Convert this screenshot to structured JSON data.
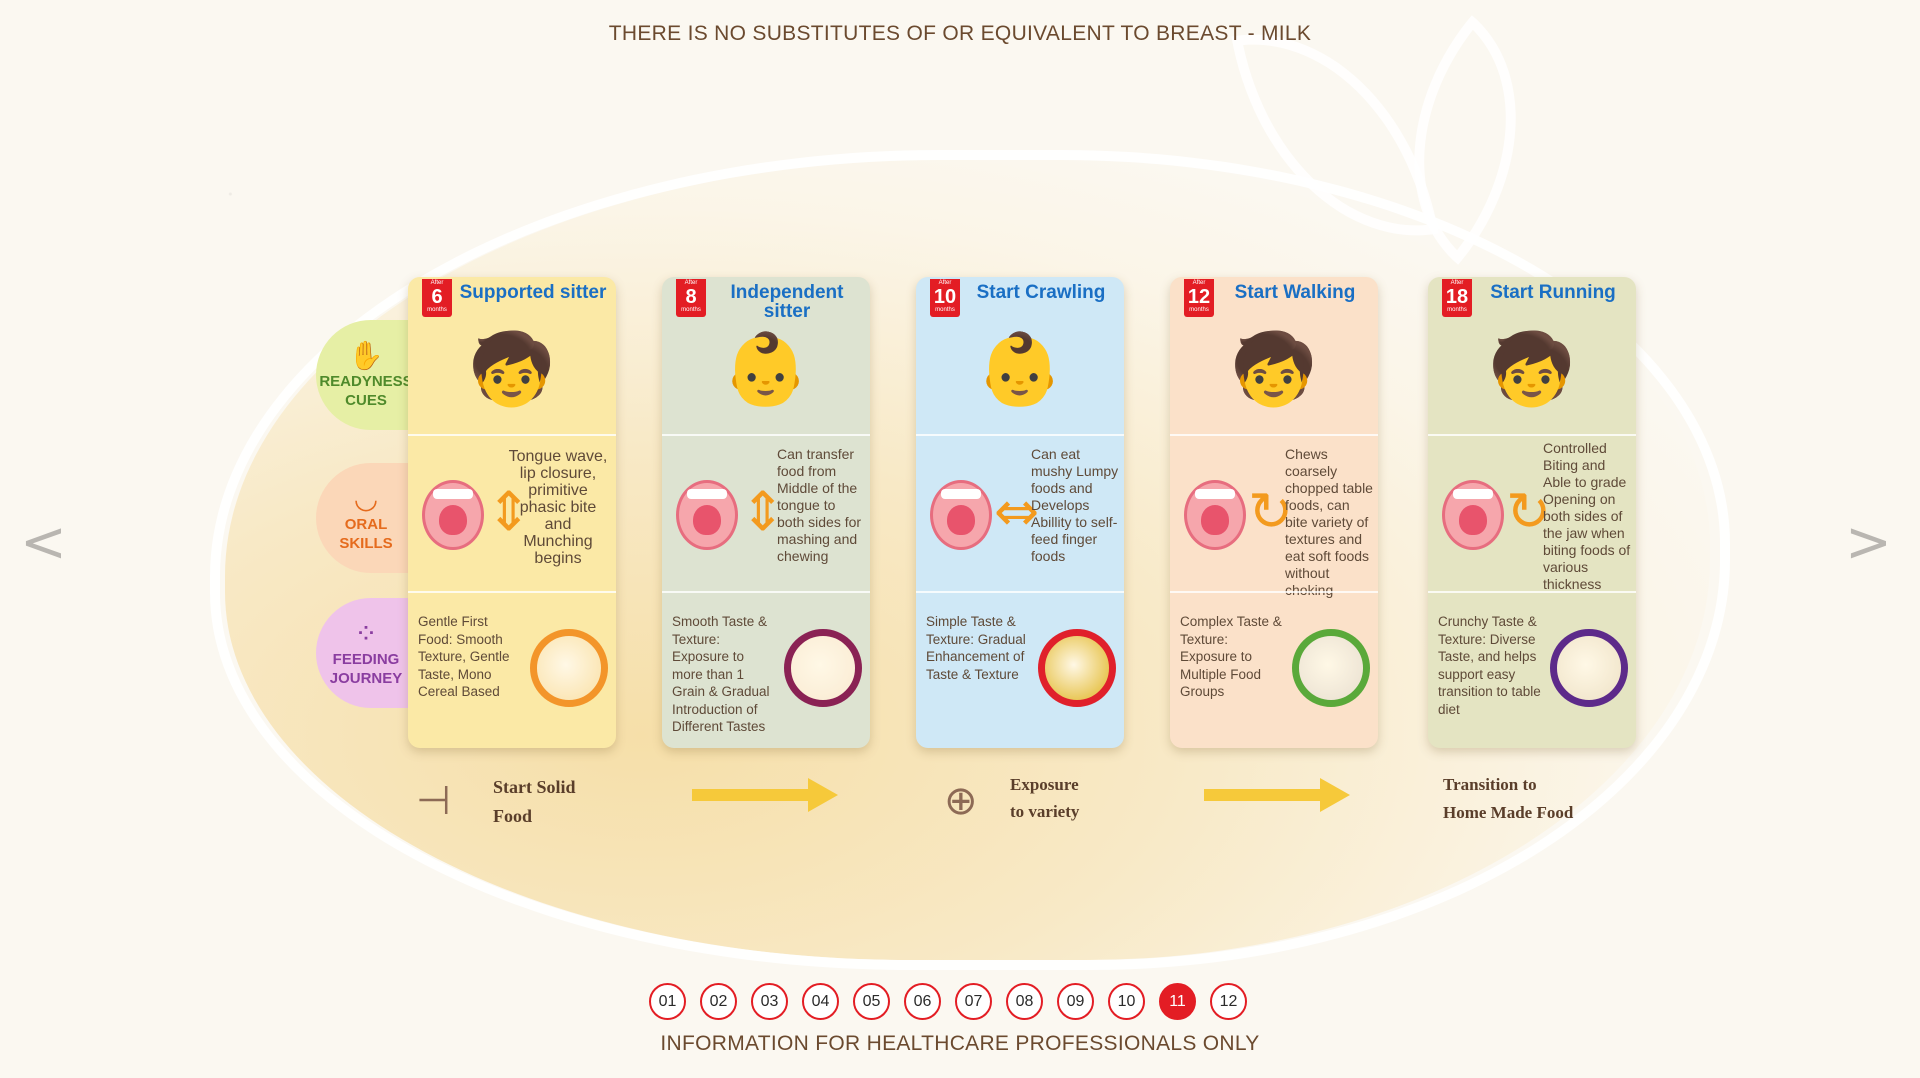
{
  "header": {
    "title": "THERE IS NO SUBSTITUTES OF OR EQUIVALENT TO BREAST - MILK"
  },
  "footer": {
    "title": "INFORMATION FOR HEALTHCARE PROFESSIONALS ONLY"
  },
  "nav": {
    "prev": "<",
    "next": ">"
  },
  "row_labels": {
    "readiness": {
      "line1": "READYNESS",
      "line2": "CUES",
      "icon": "hand-icon"
    },
    "oral": {
      "line1": "ORAL",
      "line2": "SKILLS",
      "icon": "lips-icon"
    },
    "feeding": {
      "line1": "FEEDING",
      "line2": "JOURNEY",
      "icon": "dots-icon"
    }
  },
  "cards": [
    {
      "after": "After",
      "months_num": "6",
      "months": "months",
      "title": "Supported sitter",
      "oral": "Tongue wave, lip closure, primitive phasic bite and Munching begins",
      "feeding": "Gentle First Food: Smooth Texture, Gentle Taste, Mono Cereal Based",
      "color": "#fbe9a6",
      "bowl_ring": "#f3952a"
    },
    {
      "after": "After",
      "months_num": "8",
      "months": "months",
      "title": "Independent sitter",
      "oral": "Can transfer food from Middle of the tongue to both sides for mashing and chewing",
      "feeding": "Smooth Taste & Texture: Exposure to more than 1 Grain & Gradual Introduction of Different Tastes",
      "color": "#dde3d1",
      "bowl_ring": "#8a2254"
    },
    {
      "after": "After",
      "months_num": "10",
      "months": "months",
      "title": "Start Crawling",
      "oral": "Can eat mushy Lumpy foods and Develops Abillity to self-feed finger foods",
      "feeding": "Simple Taste & Texture: Gradual Enhancement of Taste & Texture",
      "color": "#cfe8f6",
      "bowl_ring": "#e0202b"
    },
    {
      "after": "After",
      "months_num": "12",
      "months": "months",
      "title": "Start Walking",
      "oral": "Chews coarsely chopped table foods, can bite variety of textures and eat soft foods without choking",
      "feeding": "Complex Taste & Texture: Exposure to Multiple Food Groups",
      "color": "#fbe1c9",
      "bowl_ring": "#5aa93a"
    },
    {
      "after": "After",
      "months_num": "18",
      "months": "months",
      "title": "Start Running",
      "oral": "Controlled Biting and Able to grade Opening on both sides of the jaw when biting foods of various thickness",
      "feeding": "Crunchy Taste & Texture: Diverse Taste, and helps support easy transition to table diet",
      "color": "#e4e4c2",
      "bowl_ring": "#5d2a8a"
    }
  ],
  "bottom": {
    "start": {
      "line1": "Start Solid",
      "line2": "Food",
      "icon": "signpost-icon"
    },
    "exposure": {
      "line1": "Exposure",
      "line2": "to variety",
      "icon": "compass-icon"
    },
    "transition": {
      "line1": "Transition to",
      "line2": "Home Made Food"
    }
  },
  "pager": {
    "pages": [
      "01",
      "02",
      "03",
      "04",
      "05",
      "06",
      "07",
      "08",
      "09",
      "10",
      "11",
      "12"
    ],
    "active": "11"
  }
}
